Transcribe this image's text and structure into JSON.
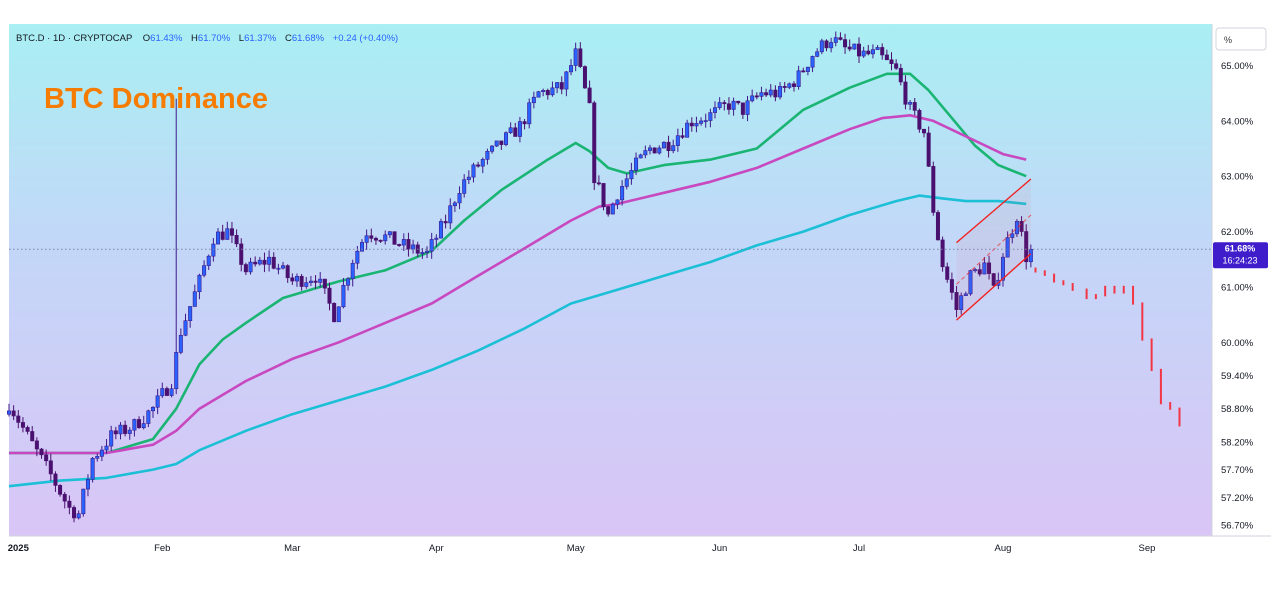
{
  "header": {
    "symbol_line": "BTC.D · 1D · CRYPTOCAP",
    "o_label": "O",
    "o_value": "61.43%",
    "h_label": "H",
    "h_value": "61.70%",
    "l_label": "L",
    "l_value": "61.37%",
    "c_label": "C",
    "c_value": "61.68%",
    "change": "+0.24 (+0.40%)"
  },
  "overlay_title": "BTC Dominance",
  "scale_label": "%",
  "price_tag": {
    "value": "61.68%",
    "countdown": "16:24:23"
  },
  "colors": {
    "up": "#2962ff",
    "down": "#4a1070",
    "upWick": "#3d1a8c",
    "ema_fast": "#1ab473",
    "ema_mid": "#c848c0",
    "ema_slow": "#1cc0d6",
    "channel": "#f22020",
    "projection": "#f23645",
    "title": "#f57c00",
    "tag": "#3f1dcb"
  },
  "chart_data": {
    "type": "candlestick",
    "timeframe": "1D",
    "ylim": [
      56.5,
      65.75
    ],
    "yticks": [
      "65.00%",
      "64.00%",
      "63.00%",
      "62.00%",
      "61.00%",
      "60.00%",
      "59.40%",
      "58.80%",
      "58.20%",
      "57.70%",
      "57.20%",
      "56.70%"
    ],
    "ytick_values": [
      65.0,
      64.0,
      63.0,
      62.0,
      61.0,
      60.0,
      59.4,
      58.8,
      58.2,
      57.7,
      57.2,
      56.7
    ],
    "xticks": [
      "2025",
      "Feb",
      "Mar",
      "Apr",
      "May",
      "Jun",
      "Jul",
      "Aug",
      "Sep"
    ],
    "xtick_days": [
      1,
      32,
      60,
      91,
      121,
      152,
      182,
      213,
      244
    ],
    "xlim_days": [
      -1,
      258
    ],
    "last_close": 61.68,
    "candle_anchors": [
      [
        -1,
        58.9
      ],
      [
        3,
        58.3
      ],
      [
        8,
        57.6
      ],
      [
        12,
        57.0
      ],
      [
        14,
        56.9
      ],
      [
        17,
        57.9
      ],
      [
        21,
        58.3
      ],
      [
        26,
        58.5
      ],
      [
        30,
        58.8
      ],
      [
        34,
        59.3
      ],
      [
        36,
        60.2
      ],
      [
        40,
        61.1
      ],
      [
        43,
        61.9
      ],
      [
        46,
        62.0
      ],
      [
        50,
        61.3
      ],
      [
        55,
        61.5
      ],
      [
        60,
        61.1
      ],
      [
        65,
        61.2
      ],
      [
        69,
        60.5
      ],
      [
        73,
        61.5
      ],
      [
        76,
        62.0
      ],
      [
        80,
        61.9
      ],
      [
        85,
        61.7
      ],
      [
        89,
        61.6
      ],
      [
        93,
        62.2
      ],
      [
        96,
        62.8
      ],
      [
        100,
        63.2
      ],
      [
        105,
        63.6
      ],
      [
        109,
        63.9
      ],
      [
        113,
        64.5
      ],
      [
        118,
        64.6
      ],
      [
        121,
        65.2
      ],
      [
        124,
        64.2
      ],
      [
        125,
        63.0
      ],
      [
        128,
        62.3
      ],
      [
        130,
        62.7
      ],
      [
        134,
        63.2
      ],
      [
        137,
        63.5
      ],
      [
        141,
        63.6
      ],
      [
        146,
        64.0
      ],
      [
        150,
        64.1
      ],
      [
        154,
        64.3
      ],
      [
        157,
        64.2
      ],
      [
        161,
        64.5
      ],
      [
        165,
        64.5
      ],
      [
        169,
        64.8
      ],
      [
        172,
        65.2
      ],
      [
        176,
        65.5
      ],
      [
        179,
        65.3
      ],
      [
        183,
        65.2
      ],
      [
        186,
        65.2
      ],
      [
        190,
        64.9
      ],
      [
        193,
        64.2
      ],
      [
        196,
        63.8
      ],
      [
        198,
        62.4
      ],
      [
        200,
        61.4
      ],
      [
        203,
        60.6
      ],
      [
        206,
        61.2
      ],
      [
        209,
        61.4
      ],
      [
        211,
        60.9
      ],
      [
        213,
        61.6
      ],
      [
        216,
        62.3
      ],
      [
        218,
        61.55
      ],
      [
        219,
        61.68
      ]
    ],
    "series": [
      {
        "name": "",
        "color_key": "ema_fast",
        "points": [
          [
            -1,
            58.0
          ],
          [
            10,
            58.0
          ],
          [
            20,
            58.0
          ],
          [
            30,
            58.25
          ],
          [
            35,
            58.8
          ],
          [
            40,
            59.6
          ],
          [
            45,
            60.05
          ],
          [
            50,
            60.35
          ],
          [
            58,
            60.8
          ],
          [
            70,
            61.1
          ],
          [
            80,
            61.3
          ],
          [
            90,
            61.65
          ],
          [
            97,
            62.2
          ],
          [
            105,
            62.75
          ],
          [
            115,
            63.3
          ],
          [
            121,
            63.6
          ],
          [
            124,
            63.45
          ],
          [
            128,
            63.15
          ],
          [
            132,
            63.05
          ],
          [
            140,
            63.2
          ],
          [
            150,
            63.3
          ],
          [
            160,
            63.5
          ],
          [
            170,
            64.2
          ],
          [
            180,
            64.6
          ],
          [
            188,
            64.85
          ],
          [
            193,
            64.85
          ],
          [
            197,
            64.55
          ],
          [
            202,
            64.05
          ],
          [
            207,
            63.55
          ],
          [
            212,
            63.2
          ],
          [
            218,
            63.0
          ]
        ]
      },
      {
        "name": "",
        "color_key": "ema_mid",
        "points": [
          [
            -1,
            58.0
          ],
          [
            10,
            58.0
          ],
          [
            20,
            58.0
          ],
          [
            30,
            58.15
          ],
          [
            35,
            58.4
          ],
          [
            40,
            58.8
          ],
          [
            50,
            59.3
          ],
          [
            60,
            59.7
          ],
          [
            70,
            60.0
          ],
          [
            80,
            60.35
          ],
          [
            90,
            60.7
          ],
          [
            100,
            61.2
          ],
          [
            110,
            61.7
          ],
          [
            120,
            62.2
          ],
          [
            126,
            62.45
          ],
          [
            130,
            62.5
          ],
          [
            140,
            62.7
          ],
          [
            150,
            62.9
          ],
          [
            160,
            63.15
          ],
          [
            170,
            63.5
          ],
          [
            180,
            63.85
          ],
          [
            187,
            64.05
          ],
          [
            193,
            64.1
          ],
          [
            198,
            64.0
          ],
          [
            203,
            63.8
          ],
          [
            208,
            63.6
          ],
          [
            213,
            63.4
          ],
          [
            218,
            63.3
          ]
        ]
      },
      {
        "name": "",
        "color_key": "ema_slow",
        "points": [
          [
            -1,
            57.4
          ],
          [
            10,
            57.5
          ],
          [
            20,
            57.55
          ],
          [
            30,
            57.7
          ],
          [
            35,
            57.8
          ],
          [
            40,
            58.05
          ],
          [
            50,
            58.4
          ],
          [
            60,
            58.7
          ],
          [
            70,
            58.95
          ],
          [
            80,
            59.2
          ],
          [
            90,
            59.5
          ],
          [
            100,
            59.85
          ],
          [
            110,
            60.25
          ],
          [
            120,
            60.7
          ],
          [
            128,
            60.9
          ],
          [
            140,
            61.2
          ],
          [
            150,
            61.45
          ],
          [
            160,
            61.75
          ],
          [
            170,
            62.0
          ],
          [
            180,
            62.3
          ],
          [
            190,
            62.55
          ],
          [
            195,
            62.65
          ],
          [
            200,
            62.6
          ],
          [
            205,
            62.55
          ],
          [
            212,
            62.55
          ],
          [
            218,
            62.5
          ]
        ]
      }
    ],
    "channel": {
      "lower": [
        [
          203,
          60.4
        ],
        [
          219,
          61.6
        ]
      ],
      "upper": [
        [
          203,
          61.8
        ],
        [
          219,
          62.95
        ]
      ],
      "mid": [
        [
          203,
          61.05
        ],
        [
          219,
          62.3
        ]
      ]
    },
    "projection": [
      [
        220,
        61.28
      ],
      [
        222,
        61.22
      ],
      [
        224,
        61.1
      ],
      [
        226,
        61.05
      ],
      [
        228,
        60.95
      ],
      [
        231,
        60.8
      ],
      [
        233,
        60.85
      ],
      [
        235,
        61.0
      ],
      [
        237,
        60.9
      ],
      [
        239,
        61.0
      ],
      [
        241,
        60.7
      ],
      [
        243,
        60.05
      ],
      [
        245,
        59.5
      ],
      [
        247,
        58.9
      ],
      [
        249,
        58.8
      ],
      [
        251,
        58.5
      ]
    ]
  }
}
